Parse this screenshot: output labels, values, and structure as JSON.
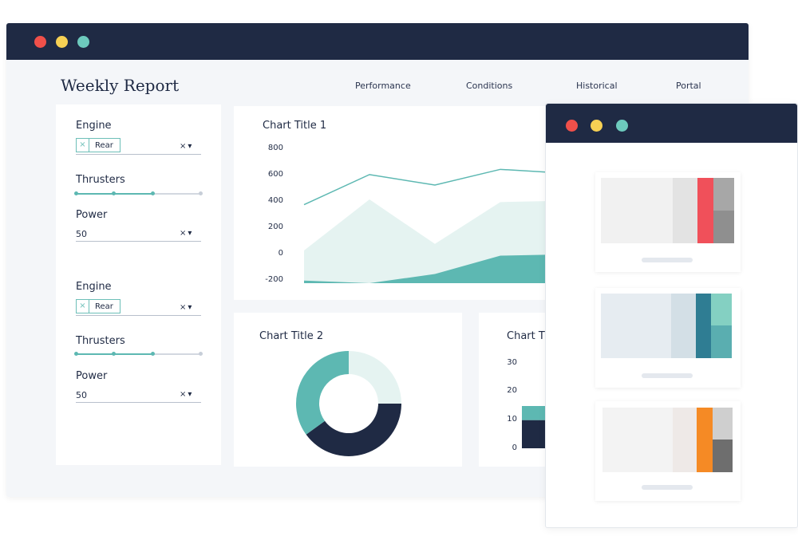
{
  "window": {
    "dots": [
      "#f0504a",
      "#f7d154",
      "#6dcabd"
    ]
  },
  "header": {
    "title": "Weekly Report",
    "nav": [
      {
        "label": "Performance"
      },
      {
        "label": "Conditions"
      },
      {
        "label": "Historical"
      },
      {
        "label": "Portal"
      }
    ]
  },
  "filters": [
    {
      "engine_label": "Engine",
      "engine_chip": "Rear",
      "engine_chip_remove": "×",
      "engine_controls": "×▾",
      "thrusters_label": "Thrusters",
      "thrusters_value": 0.6,
      "power_label": "Power",
      "power_value": "50",
      "power_controls": "×▾"
    },
    {
      "engine_label": "Engine",
      "engine_chip": "Rear",
      "engine_chip_remove": "×",
      "engine_controls": "×▾",
      "thrusters_label": "Thrusters",
      "thrusters_value": 0.6,
      "power_label": "Power",
      "power_value": "50",
      "power_controls": "×▾"
    }
  ],
  "chart_data": [
    {
      "type": "line",
      "title": "Chart Title 1",
      "yticks": [
        "800",
        "600",
        "400",
        "200",
        "0",
        "-200"
      ],
      "ylim": [
        -200,
        800
      ],
      "series": [
        {
          "values": [
            400,
            630,
            550,
            670,
            640
          ],
          "color": "#5db8b2",
          "style": "line"
        },
        {
          "values": [
            50,
            440,
            100,
            420,
            430
          ],
          "color": "#e5f3f1",
          "style": "area"
        },
        {
          "values": [
            -180,
            -200,
            -130,
            10,
            20
          ],
          "color": "#5db8b2",
          "style": "area"
        }
      ]
    },
    {
      "type": "pie",
      "title": "Chart Title 2",
      "values": [
        25,
        40,
        35
      ],
      "colors": [
        "#e5f3f1",
        "#1f2a44",
        "#5db8b2"
      ]
    },
    {
      "type": "bar",
      "title": "Chart T",
      "yticks": [
        "30",
        "20",
        "10",
        "0"
      ],
      "ylim": [
        0,
        30
      ],
      "series": [
        {
          "values": [
            10
          ],
          "color": "#1f2a44"
        },
        {
          "values": [
            5
          ],
          "color": "#5db8b2"
        }
      ]
    }
  ],
  "side_window": {
    "dots": [
      "#f0504a",
      "#f7d154",
      "#6dcabd"
    ],
    "cards": [
      {
        "colors": [
          "#f1f1f1",
          "#e3e3e3",
          "#f0505a",
          "#a7a7a7",
          "#8f8f8f"
        ]
      },
      {
        "colors": [
          "#e6ecf1",
          "#d3dfe6",
          "#2f7d93",
          "#84d0c2",
          "#5aaeb0"
        ]
      },
      {
        "colors": [
          "#f3f3f3",
          "#eee9e7",
          "#f58a25",
          "#cfcfcf",
          "#6e6e6e"
        ]
      }
    ]
  }
}
